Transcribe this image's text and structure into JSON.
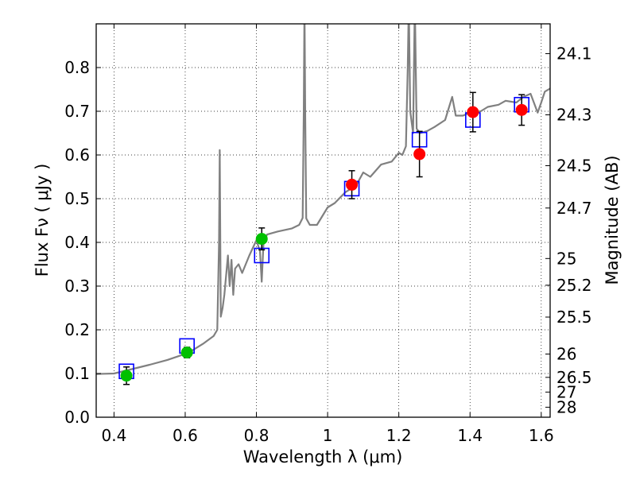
{
  "chart_data": {
    "type": "scatter",
    "xlabel": "Wavelength  λ (μm)",
    "ylabel": "Flux  Fν  ( μJy )",
    "ylabel_right": "Magnitude (AB)",
    "xlim": [
      0.35,
      1.625
    ],
    "ylim": [
      0,
      0.9
    ],
    "grid": true,
    "x_ticks": [
      0.4,
      0.6,
      0.8,
      1.0,
      1.2,
      1.4,
      1.6
    ],
    "x_tick_labels": [
      "0.4",
      "0.6",
      "0.8",
      "1",
      "1.2",
      "1.4",
      "1.6"
    ],
    "y_ticks": [
      0.0,
      0.1,
      0.2,
      0.3,
      0.4,
      0.5,
      0.6,
      0.7,
      0.8
    ],
    "y_tick_labels": [
      "0.0",
      "0.1",
      "0.2",
      "0.3",
      "0.4",
      "0.5",
      "0.6",
      "0.7",
      "0.8"
    ],
    "right_ticks": [
      24.1,
      24.3,
      24.5,
      24.7,
      25,
      25.2,
      25.5,
      26,
      26.5,
      27,
      28
    ],
    "right_tick_labels": [
      "24.1",
      "24.3",
      "24.5",
      "24.7",
      "25",
      "25.2",
      "25.5",
      "26",
      "26.5",
      "27",
      "28"
    ],
    "ab_zeropoint": 23.9,
    "colors": {
      "spectrum": "#808080",
      "green": "#00c000",
      "red": "#ff0000",
      "model": "#0000ff",
      "errorbar": "#000000"
    },
    "series": [
      {
        "name": "spectrum",
        "kind": "line",
        "x": [
          0.35,
          0.4,
          0.45,
          0.5,
          0.55,
          0.6,
          0.62,
          0.65,
          0.68,
          0.69,
          0.695,
          0.697,
          0.7,
          0.705,
          0.71,
          0.72,
          0.725,
          0.73,
          0.735,
          0.74,
          0.75,
          0.76,
          0.78,
          0.8,
          0.81,
          0.815,
          0.82,
          0.83,
          0.86,
          0.9,
          0.92,
          0.93,
          0.933,
          0.935,
          0.937,
          0.94,
          0.95,
          0.97,
          1.0,
          1.02,
          1.05,
          1.08,
          1.1,
          1.12,
          1.15,
          1.18,
          1.2,
          1.21,
          1.22,
          1.225,
          1.228,
          1.232,
          1.24,
          1.245,
          1.25,
          1.26,
          1.28,
          1.3,
          1.33,
          1.35,
          1.36,
          1.38,
          1.4,
          1.43,
          1.45,
          1.48,
          1.5,
          1.53,
          1.55,
          1.57,
          1.59,
          1.6,
          1.61,
          1.625
        ],
        "y": [
          0.099,
          0.1,
          0.11,
          0.12,
          0.131,
          0.145,
          0.153,
          0.168,
          0.186,
          0.2,
          0.4,
          0.611,
          0.23,
          0.25,
          0.28,
          0.37,
          0.3,
          0.36,
          0.28,
          0.34,
          0.35,
          0.33,
          0.37,
          0.405,
          0.38,
          0.31,
          0.4,
          0.418,
          0.425,
          0.432,
          0.44,
          0.456,
          0.7,
          0.95,
          0.7,
          0.455,
          0.44,
          0.44,
          0.48,
          0.49,
          0.515,
          0.53,
          0.56,
          0.55,
          0.578,
          0.585,
          0.605,
          0.6,
          0.62,
          0.8,
          0.95,
          0.7,
          0.65,
          0.95,
          0.66,
          0.65,
          0.655,
          0.664,
          0.68,
          0.733,
          0.69,
          0.69,
          0.697,
          0.7,
          0.71,
          0.715,
          0.724,
          0.72,
          0.733,
          0.74,
          0.697,
          0.72,
          0.745,
          0.752
        ]
      },
      {
        "name": "observed-green",
        "kind": "points",
        "marker": "circle",
        "x": [
          0.435,
          0.605,
          0.815
        ],
        "y": [
          0.095,
          0.148,
          0.408
        ],
        "err": [
          0.02,
          0.012,
          0.025
        ]
      },
      {
        "name": "observed-red",
        "kind": "points",
        "marker": "circle",
        "x": [
          1.068,
          1.258,
          1.408,
          1.545
        ],
        "y": [
          0.532,
          0.602,
          0.698,
          0.703
        ],
        "err": [
          0.032,
          0.052,
          0.045,
          0.035
        ]
      },
      {
        "name": "model-photometry",
        "kind": "points",
        "marker": "square",
        "x": [
          0.435,
          0.605,
          0.815,
          1.068,
          1.258,
          1.408,
          1.545
        ],
        "y": [
          0.105,
          0.163,
          0.37,
          0.523,
          0.635,
          0.68,
          0.715
        ]
      }
    ]
  }
}
